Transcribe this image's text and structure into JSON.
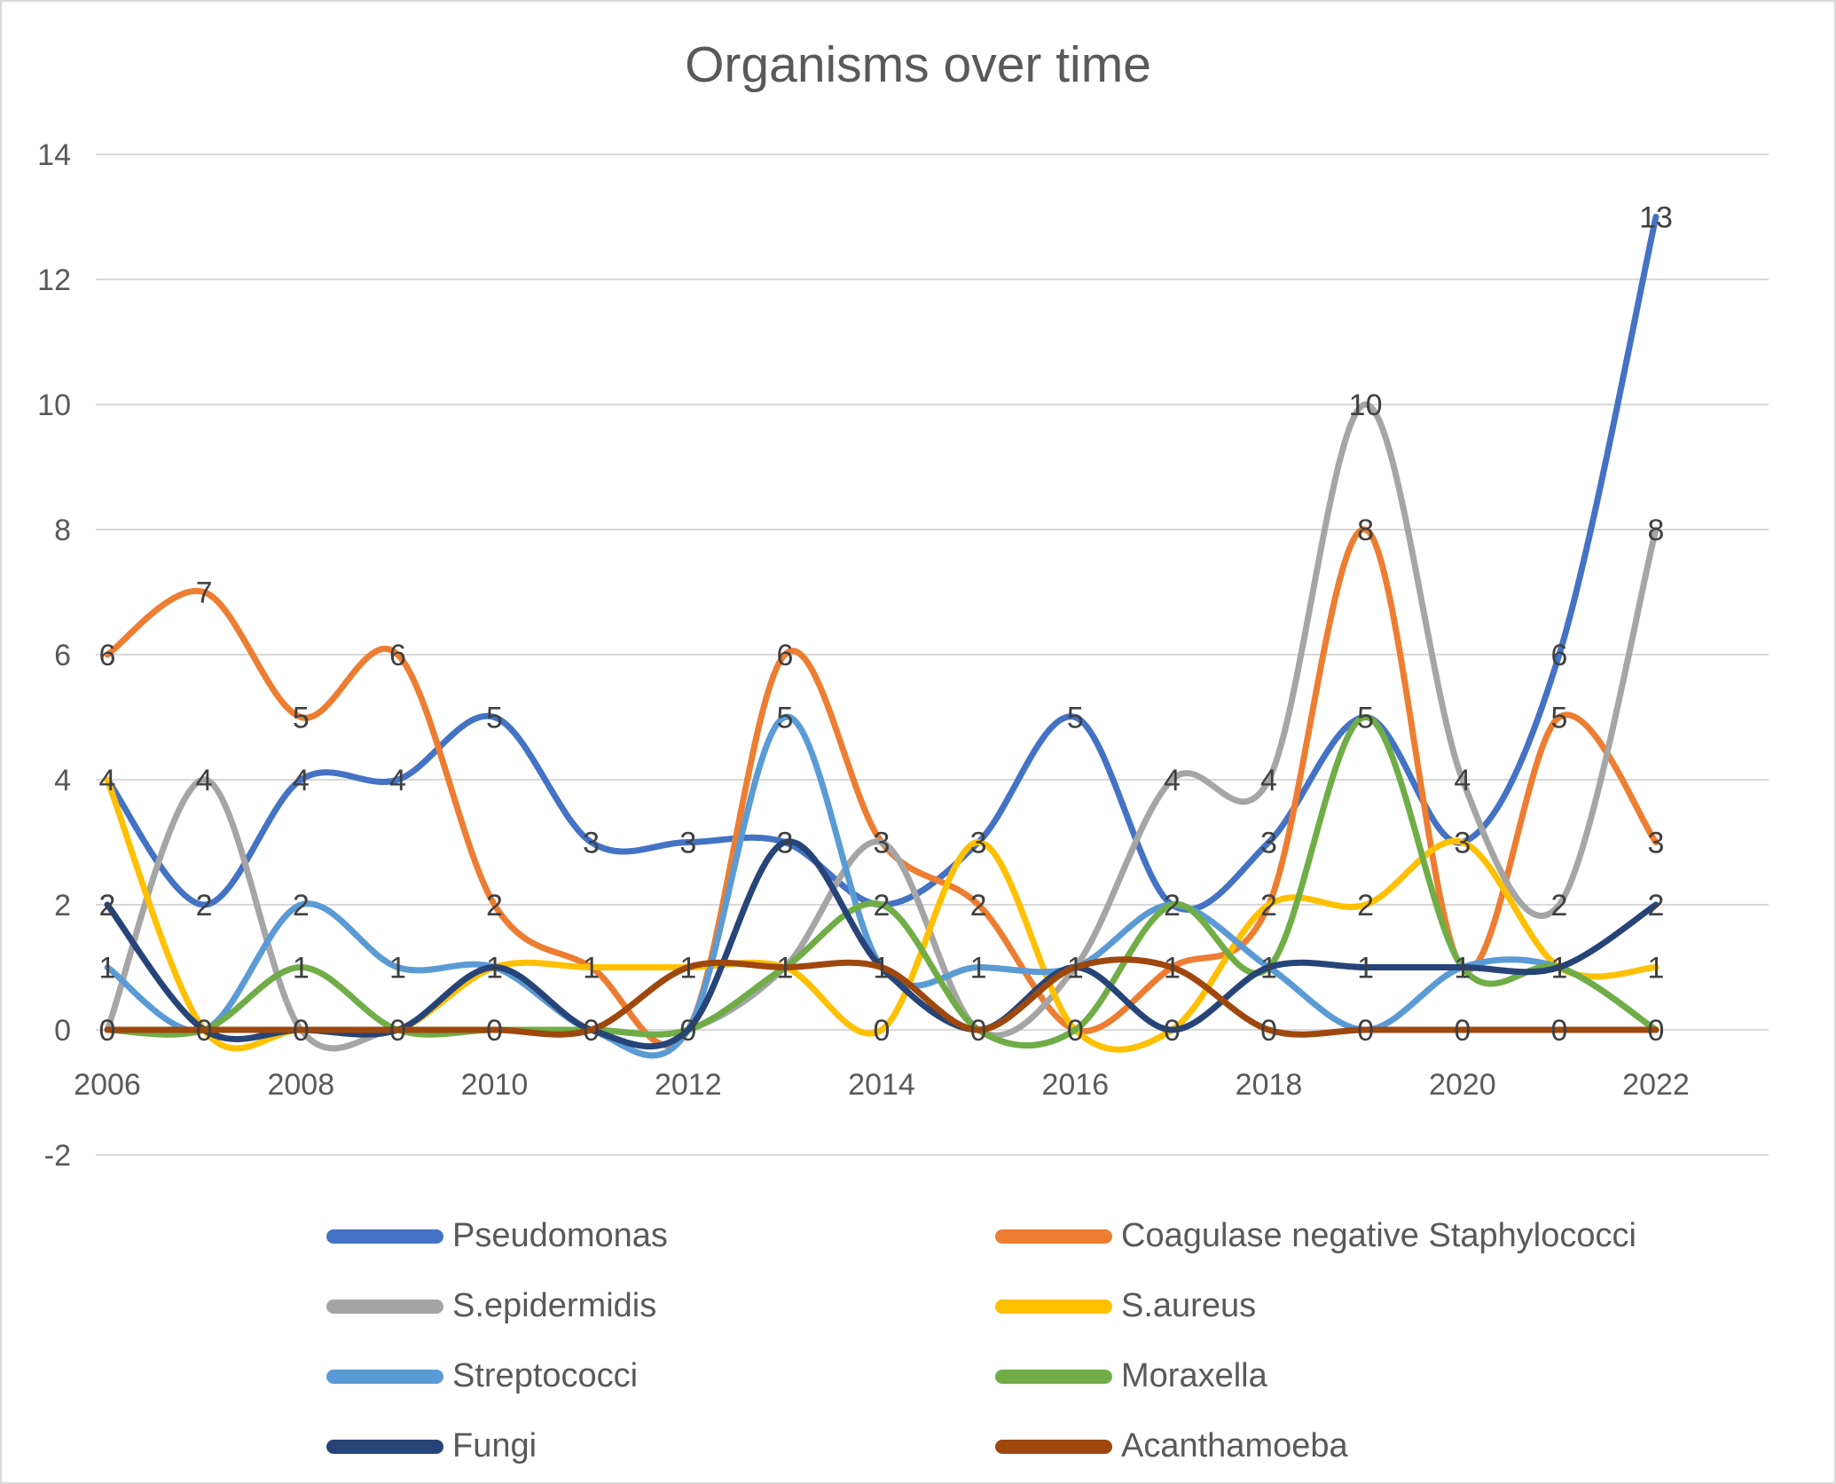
{
  "chart_data": {
    "type": "line",
    "title": "Organisms over time",
    "smooth": true,
    "grid": true,
    "legend_position": "bottom",
    "data_labels": "center",
    "label_color": "#404040",
    "axis_color": "#595959",
    "gridline_color": "#d9d9d9",
    "x": [
      2006,
      2007,
      2008,
      2009,
      2010,
      2011,
      2012,
      2013,
      2014,
      2015,
      2016,
      2017,
      2018,
      2019,
      2020,
      2021,
      2022
    ],
    "x_tick_labels": [
      "2006",
      "2008",
      "2010",
      "2012",
      "2014",
      "2016",
      "2018",
      "2020",
      "2022"
    ],
    "y_ticks": [
      14,
      12,
      10,
      8,
      6,
      4,
      2,
      0,
      -2
    ],
    "ylim": [
      -2,
      14
    ],
    "series": [
      {
        "name": "Pseudomonas",
        "color": "#4472C4",
        "values": [
          4,
          2,
          4,
          4,
          5,
          3,
          3,
          3,
          2,
          3,
          5,
          2,
          3,
          5,
          3,
          6,
          13
        ]
      },
      {
        "name": "Coagulase negative Staphylococci",
        "color": "#ED7D31",
        "values": [
          6,
          7,
          5,
          6,
          2,
          1,
          0,
          6,
          3,
          2,
          0,
          1,
          2,
          8,
          1,
          5,
          3
        ]
      },
      {
        "name": "S.epidermidis",
        "color": "#A5A5A5",
        "values": [
          0,
          4,
          0,
          0,
          0,
          0,
          0,
          1,
          3,
          0,
          1,
          4,
          4,
          10,
          4,
          2,
          8
        ]
      },
      {
        "name": "S.aureus",
        "color": "#FFC000",
        "values": [
          4,
          0,
          0,
          0,
          1,
          1,
          1,
          1,
          0,
          3,
          0,
          0,
          2,
          2,
          3,
          1,
          1
        ]
      },
      {
        "name": "Streptococci",
        "color": "#5B9BD5",
        "values": [
          1,
          0,
          2,
          1,
          1,
          0,
          0,
          5,
          1,
          1,
          1,
          2,
          1,
          0,
          1,
          1,
          0
        ]
      },
      {
        "name": "Moraxella",
        "color": "#70AD47",
        "values": [
          0,
          0,
          1,
          0,
          0,
          0,
          0,
          1,
          2,
          0,
          0,
          2,
          1,
          5,
          1,
          1,
          0
        ]
      },
      {
        "name": "Fungi",
        "color": "#264478",
        "values": [
          2,
          0,
          0,
          0,
          1,
          0,
          0,
          3,
          1,
          0,
          1,
          0,
          1,
          1,
          1,
          1,
          2
        ]
      },
      {
        "name": "Acanthamoeba",
        "color": "#9E480E",
        "values": [
          0,
          0,
          0,
          0,
          0,
          0,
          1,
          1,
          1,
          0,
          1,
          1,
          0,
          0,
          0,
          0,
          0
        ]
      }
    ]
  }
}
